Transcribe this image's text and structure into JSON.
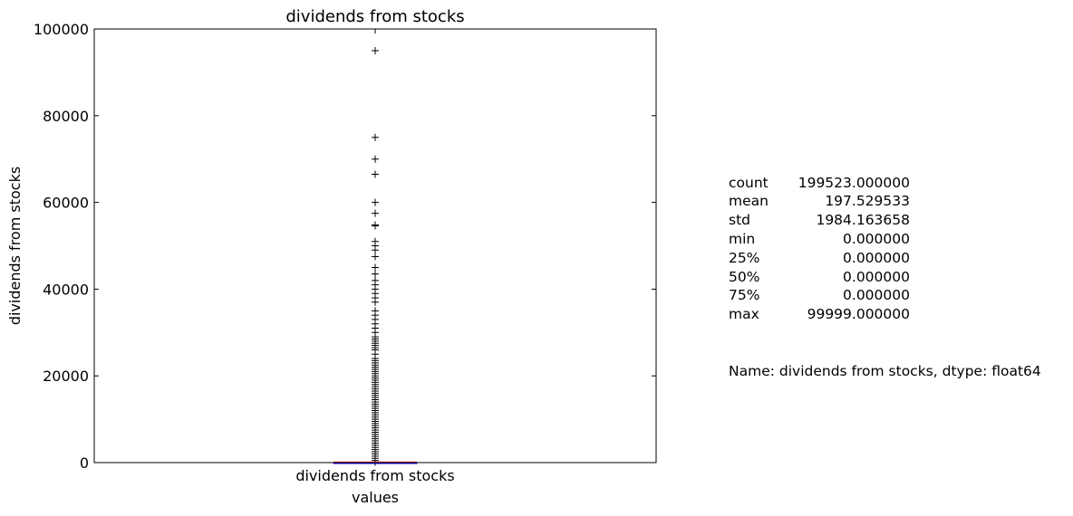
{
  "chart_data": {
    "type": "box",
    "title": "dividends from stocks",
    "xlabel": "values",
    "ylabel": "dividends from stocks",
    "categories": [
      "dividends from stocks"
    ],
    "ylim": [
      0,
      100000
    ],
    "yticks": [
      0,
      20000,
      40000,
      60000,
      80000,
      100000
    ],
    "ytick_labels": [
      "0",
      "20000",
      "40000",
      "60000",
      "80000",
      "100000"
    ],
    "grid": false,
    "box": {
      "q1": 0,
      "median": 0,
      "q3": 0,
      "whisker_low": 0,
      "whisker_high": 0
    },
    "outliers": [
      95000,
      75000,
      70000,
      66500,
      60000,
      57500,
      54800,
      54600,
      51000,
      50000,
      49000,
      47500,
      45000,
      43500,
      42000,
      41000,
      40000,
      39000,
      38000,
      37000,
      35000,
      34000,
      33000,
      32000,
      31000,
      30000,
      29000,
      28500,
      28000,
      27500,
      27000,
      26500,
      26000,
      25000,
      24000,
      23500,
      23000,
      22500,
      22000,
      21500,
      21000,
      20500,
      20000,
      19500,
      19000,
      18500,
      18000,
      17500,
      17000,
      16500,
      16000,
      15500,
      15000,
      14500,
      14000,
      13500,
      13000,
      12500,
      12000,
      11500,
      11000,
      10500,
      10000,
      9500,
      9000,
      8500,
      8000,
      7500,
      7000,
      6500,
      6000,
      5500,
      5000,
      4500,
      4000,
      3500,
      3000,
      2500,
      2000,
      1500,
      1000,
      500,
      100
    ]
  },
  "stats": [
    {
      "key": "count",
      "value": "199523.000000"
    },
    {
      "key": "mean",
      "value": "197.529533"
    },
    {
      "key": "std",
      "value": "1984.163658"
    },
    {
      "key": "min",
      "value": "0.000000"
    },
    {
      "key": "25%",
      "value": "0.000000"
    },
    {
      "key": "50%",
      "value": "0.000000"
    },
    {
      "key": "75%",
      "value": "0.000000"
    },
    {
      "key": "max",
      "value": "99999.000000"
    }
  ],
  "stats_footer": "Name: dividends from stocks, dtype: float64",
  "colors": {
    "median": "#ff0000",
    "box": "#0000ff",
    "outlier": "#000000"
  }
}
